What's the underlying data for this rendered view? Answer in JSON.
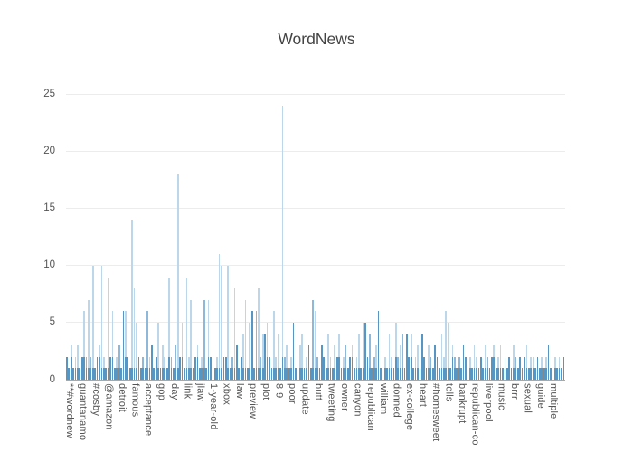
{
  "chart_data": {
    "type": "bar",
    "title": "WordNews",
    "xlabel": "",
    "ylabel": "",
    "ylim": [
      0,
      26
    ],
    "yticks": [
      0,
      5,
      10,
      15,
      20,
      25
    ],
    "grid": "horizontal",
    "legend": "none",
    "x_tick_start_index": 1,
    "x_tick_every": 6,
    "x_tick_labels": [
      "**#wordnew",
      "guantanamo",
      "#cosby",
      "@amazon",
      "detroit",
      "famous",
      "acceptance",
      "gop",
      "day",
      "link",
      "jlaw",
      "1-year-old",
      "xbox",
      "law",
      "preview",
      "plot",
      "8-9",
      "poor",
      "update",
      "butt",
      "tweeting",
      "owner",
      "canyon",
      "republican",
      "william",
      "donned",
      "ex-college",
      "heart",
      "#homesweet",
      "tells",
      "bankrupt",
      "republican-co",
      "liverpool",
      "music",
      "brrr",
      "sexual",
      "guide",
      "multiple"
    ],
    "values": [
      2,
      1,
      3,
      1,
      2,
      3,
      1,
      2,
      6,
      2,
      7,
      2,
      10,
      1,
      2,
      3,
      10,
      2,
      1,
      9,
      2,
      6,
      1,
      2,
      3,
      1,
      6,
      6,
      2,
      1,
      14,
      8,
      5,
      2,
      1,
      2,
      1,
      6,
      2,
      3,
      1,
      2,
      5,
      1,
      3,
      2,
      1,
      9,
      2,
      1,
      3,
      18,
      2,
      5,
      1,
      9,
      2,
      7,
      1,
      2,
      3,
      1,
      2,
      7,
      1,
      7,
      2,
      3,
      1,
      2,
      11,
      10,
      2,
      2,
      10,
      1,
      2,
      8,
      3,
      1,
      2,
      4,
      7,
      1,
      5,
      6,
      1,
      6,
      8,
      2,
      4,
      4,
      5,
      2,
      1,
      6,
      2,
      4,
      1,
      24,
      2,
      3,
      1,
      2,
      5,
      1,
      2,
      3,
      4,
      1,
      2,
      3,
      1,
      7,
      6,
      2,
      1,
      3,
      2,
      1,
      4,
      2,
      1,
      3,
      2,
      4,
      1,
      2,
      3,
      1,
      2,
      3,
      1,
      2,
      4,
      1,
      5,
      5,
      2,
      4,
      1,
      2,
      3,
      6,
      1,
      4,
      2,
      1,
      4,
      2,
      1,
      5,
      2,
      3,
      4,
      1,
      4,
      2,
      4,
      1,
      2,
      3,
      1,
      4,
      2,
      1,
      3,
      2,
      1,
      3,
      2,
      1,
      4,
      2,
      6,
      5,
      1,
      3,
      2,
      1,
      2,
      1,
      3,
      2,
      1,
      2,
      1,
      3,
      2,
      1,
      2,
      1,
      3,
      2,
      1,
      2,
      3,
      1,
      2,
      3,
      1,
      2,
      1,
      2,
      1,
      3,
      2,
      1,
      2,
      1,
      2,
      3,
      1,
      2,
      2,
      1,
      2,
      1,
      2,
      1,
      2,
      3,
      1,
      2,
      2,
      1,
      2,
      1,
      2
    ]
  },
  "colors": {
    "bar_light": "#bdd7ea",
    "bar_medium": "#8db8d9",
    "bar_dark": "#5795c3",
    "grid_line": "#ececec",
    "axis_line": "#a8a8a8",
    "title_text": "#444444",
    "tick_text": "#545454"
  }
}
